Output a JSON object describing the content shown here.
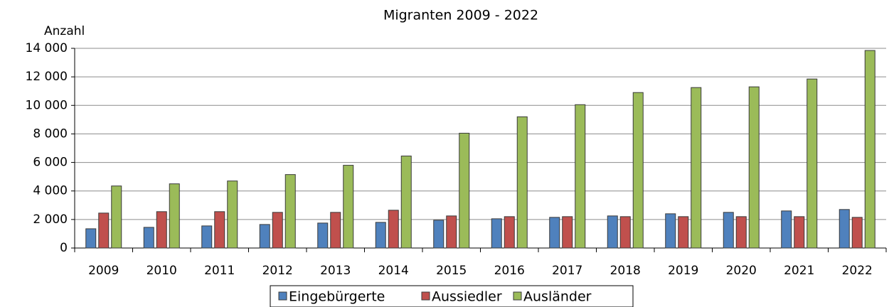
{
  "chart_data": {
    "type": "bar",
    "title": "Migranten 2009 - 2022",
    "y_label": "Anzahl",
    "categories": [
      "2009",
      "2010",
      "2011",
      "2012",
      "2013",
      "2014",
      "2015",
      "2016",
      "2017",
      "2018",
      "2019",
      "2020",
      "2021",
      "2022"
    ],
    "series": [
      {
        "name": "Eingebürgerte",
        "color": "#4f81bd",
        "values": [
          1350,
          1450,
          1550,
          1650,
          1750,
          1800,
          1950,
          2050,
          2150,
          2250,
          2400,
          2500,
          2600,
          2700
        ]
      },
      {
        "name": "Aussiedler",
        "color": "#c0504d",
        "values": [
          2450,
          2550,
          2550,
          2500,
          2500,
          2650,
          2250,
          2200,
          2200,
          2200,
          2200,
          2200,
          2200,
          2150
        ]
      },
      {
        "name": "Ausländer",
        "color": "#9bbb59",
        "values": [
          4350,
          4500,
          4700,
          5150,
          5800,
          6450,
          8050,
          9200,
          10050,
          10900,
          11250,
          11300,
          11850,
          13850
        ]
      }
    ],
    "ylim": [
      0,
      14000
    ],
    "yticks": [
      {
        "value": 0,
        "label": "0"
      },
      {
        "value": 2000,
        "label": "2 000"
      },
      {
        "value": 4000,
        "label": "4 000"
      },
      {
        "value": 6000,
        "label": "6 000"
      },
      {
        "value": 8000,
        "label": "8 000"
      },
      {
        "value": 10000,
        "label": "10 000"
      },
      {
        "value": 12000,
        "label": "12 000"
      },
      {
        "value": 14000,
        "label": "14 000"
      }
    ],
    "grid": true,
    "legend": "bottom"
  }
}
